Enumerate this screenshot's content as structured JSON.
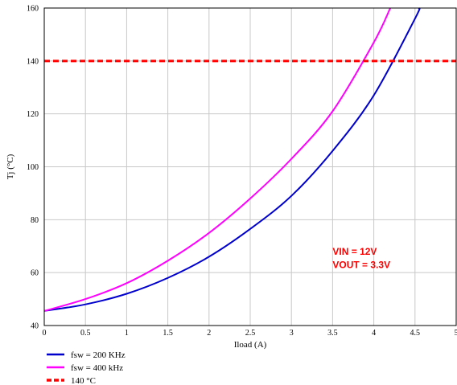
{
  "chart_data": {
    "type": "line",
    "title": "",
    "xlabel": "Iload (A)",
    "ylabel": "Tj (°C)",
    "xlim": [
      0,
      5
    ],
    "ylim": [
      40,
      160
    ],
    "xticks": [
      "0",
      "0.5",
      "1",
      "1.5",
      "2",
      "2.5",
      "3",
      "3.5",
      "4",
      "4.5",
      "5"
    ],
    "yticks": [
      "40",
      "60",
      "80",
      "100",
      "120",
      "140",
      "160"
    ],
    "grid": true,
    "legend_position": "bottom-left",
    "series": [
      {
        "name": "fsw = 200 KHz",
        "color": "#0000cc",
        "style": "solid",
        "x": [
          0,
          0.5,
          1,
          1.5,
          2,
          2.5,
          3,
          3.5,
          4,
          4.5,
          4.55
        ],
        "y": [
          45.5,
          48,
          52,
          58,
          66,
          76.5,
          89,
          106,
          127,
          156,
          160
        ]
      },
      {
        "name": "fsw = 400 kHz",
        "color": "#ff00ff",
        "style": "solid",
        "x": [
          0,
          0.5,
          1,
          1.5,
          2,
          2.5,
          3,
          3.5,
          4,
          4.2
        ],
        "y": [
          45.5,
          50,
          56,
          64.5,
          75,
          88,
          103,
          121,
          147,
          160
        ]
      },
      {
        "name": "140 °C",
        "color": "#ff0000",
        "style": "dashed",
        "x": [
          0,
          5
        ],
        "y": [
          140,
          140
        ]
      }
    ],
    "annotations": [
      {
        "text": "VIN = 12V",
        "x": 3.5,
        "y": 68,
        "color": "#ff0000"
      },
      {
        "text": "VOUT = 3.3V",
        "x": 3.5,
        "y": 63,
        "color": "#ff0000"
      }
    ]
  }
}
